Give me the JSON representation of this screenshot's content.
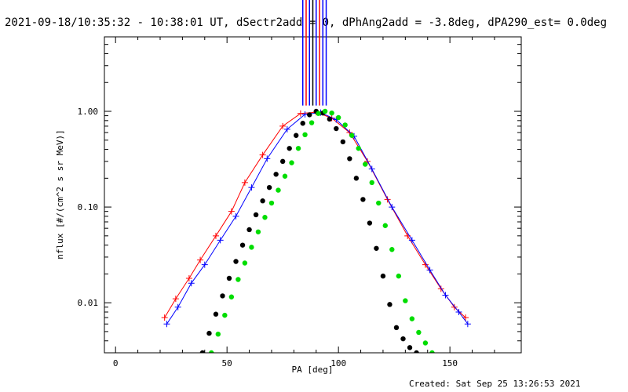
{
  "chart_data": {
    "type": "scatter",
    "title": "2021-09-18/10:35:32 - 10:38:01 UT, dSectr2add = 0, dPhAng2add = -3.8deg, dPA290_est=  0.0deg",
    "xlabel": "PA [deg]",
    "ylabel": "nflux [#/(cm^2 s sr MeV)]",
    "xlim": [
      -5,
      182
    ],
    "ylim": [
      0.003,
      6.0
    ],
    "yscale": "log",
    "x_ticks": [
      {
        "value": 0,
        "label": "0"
      },
      {
        "value": 50,
        "label": "50"
      },
      {
        "value": 100,
        "label": "100"
      },
      {
        "value": 150,
        "label": "150"
      }
    ],
    "y_ticks": [
      {
        "value": 0.01,
        "label": "0.01"
      },
      {
        "value": 0.1,
        "label": "0.10"
      },
      {
        "value": 1.0,
        "label": "1.00"
      }
    ],
    "grid": false,
    "series": [
      {
        "color": "#ff0000",
        "marker": "plus",
        "style": "line-with-markers",
        "description": "multiple spectra, red",
        "x": [
          22,
          27,
          33,
          38,
          45,
          52,
          58,
          66,
          75,
          83,
          90,
          97,
          105,
          113,
          122,
          131,
          139,
          146,
          152,
          157
        ],
        "y": [
          0.007,
          0.011,
          0.018,
          0.028,
          0.05,
          0.09,
          0.18,
          0.35,
          0.7,
          0.95,
          0.98,
          0.85,
          0.6,
          0.3,
          0.12,
          0.05,
          0.025,
          0.014,
          0.009,
          0.007
        ]
      },
      {
        "color": "#0000ff",
        "marker": "plus",
        "style": "line-with-markers",
        "description": "multiple spectra, blue",
        "x": [
          23,
          28,
          34,
          40,
          47,
          54,
          61,
          68,
          77,
          85,
          92,
          99,
          107,
          115,
          124,
          133,
          141,
          148,
          154,
          158
        ],
        "y": [
          0.006,
          0.009,
          0.016,
          0.025,
          0.045,
          0.08,
          0.16,
          0.32,
          0.65,
          0.93,
          0.97,
          0.82,
          0.55,
          0.25,
          0.1,
          0.045,
          0.022,
          0.012,
          0.008,
          0.006
        ]
      },
      {
        "color": "#000000",
        "marker": "dot",
        "style": "dotted-fit",
        "description": "model fit, black",
        "x": [
          39,
          42,
          45,
          48,
          51,
          54,
          57,
          60,
          63,
          66,
          69,
          72,
          75,
          78,
          81,
          84,
          87,
          90,
          93,
          96,
          99,
          102,
          105,
          108,
          111,
          114,
          117,
          120,
          123,
          126,
          129,
          132,
          135
        ],
        "y": [
          0.003,
          0.0048,
          0.0076,
          0.0118,
          0.018,
          0.027,
          0.04,
          0.058,
          0.083,
          0.116,
          0.16,
          0.22,
          0.3,
          0.41,
          0.56,
          0.75,
          0.92,
          1.0,
          0.96,
          0.83,
          0.66,
          0.48,
          0.32,
          0.2,
          0.12,
          0.068,
          0.037,
          0.019,
          0.0096,
          0.0055,
          0.0042,
          0.0034,
          0.003
        ]
      },
      {
        "color": "#00dd00",
        "marker": "dot",
        "style": "dotted-fit",
        "description": "model fit, green",
        "x": [
          43,
          46,
          49,
          52,
          55,
          58,
          61,
          64,
          67,
          70,
          73,
          76,
          79,
          82,
          85,
          88,
          91,
          94,
          97,
          100,
          103,
          106,
          109,
          112,
          115,
          118,
          121,
          124,
          127,
          130,
          133,
          136,
          139,
          142
        ],
        "y": [
          0.003,
          0.0047,
          0.0074,
          0.0115,
          0.0175,
          0.026,
          0.038,
          0.055,
          0.078,
          0.11,
          0.15,
          0.21,
          0.29,
          0.41,
          0.57,
          0.76,
          0.95,
          1.0,
          0.96,
          0.86,
          0.72,
          0.56,
          0.41,
          0.28,
          0.18,
          0.11,
          0.064,
          0.036,
          0.019,
          0.0105,
          0.0068,
          0.0049,
          0.0038,
          0.003
        ]
      }
    ]
  },
  "footer": {
    "created": "Created: Sat Sep 25 13:26:53 2021"
  }
}
